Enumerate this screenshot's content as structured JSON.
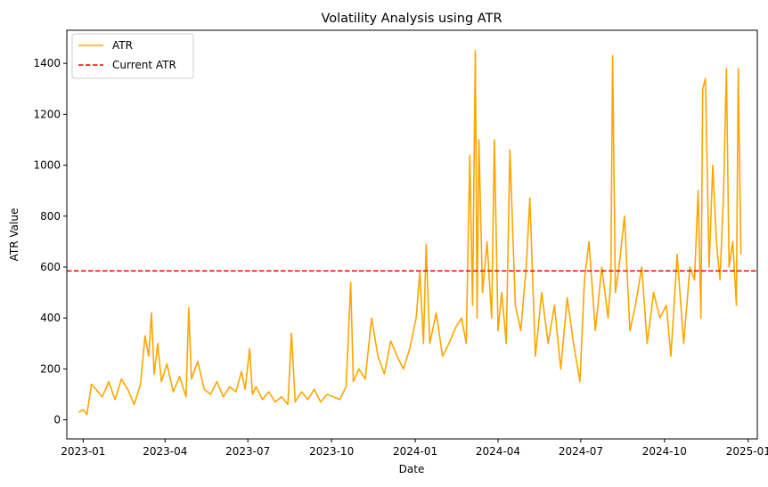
{
  "chart_data": {
    "type": "line",
    "title": "Volatility Analysis using ATR",
    "xlabel": "Date",
    "ylabel": "ATR Value",
    "x_ticks": [
      "2023-01",
      "2023-04",
      "2023-07",
      "2023-10",
      "2024-01",
      "2024-04",
      "2024-07",
      "2024-10",
      "2025-01"
    ],
    "y_ticks": [
      0,
      200,
      400,
      600,
      800,
      1000,
      1200,
      1400
    ],
    "xlim": [
      "2022-12-14",
      "2025-01-11"
    ],
    "ylim": [
      -75,
      1530
    ],
    "grid": false,
    "legend_position": "top-left",
    "colors": {
      "atr": "#ffa500",
      "current": "#ff0000"
    },
    "series": [
      {
        "name": "ATR",
        "style": "solid",
        "x": [
          "2022-12-27",
          "2023-01-01",
          "2023-01-05",
          "2023-01-10",
          "2023-01-15",
          "2023-01-22",
          "2023-01-29",
          "2023-02-05",
          "2023-02-12",
          "2023-02-19",
          "2023-02-26",
          "2023-03-05",
          "2023-03-10",
          "2023-03-14",
          "2023-03-17",
          "2023-03-20",
          "2023-03-24",
          "2023-03-28",
          "2023-04-03",
          "2023-04-10",
          "2023-04-17",
          "2023-04-24",
          "2023-04-27",
          "2023-04-30",
          "2023-05-07",
          "2023-05-14",
          "2023-05-21",
          "2023-05-28",
          "2023-06-04",
          "2023-06-11",
          "2023-06-18",
          "2023-06-24",
          "2023-06-28",
          "2023-07-03",
          "2023-07-06",
          "2023-07-10",
          "2023-07-17",
          "2023-07-24",
          "2023-07-31",
          "2023-08-07",
          "2023-08-14",
          "2023-08-18",
          "2023-08-22",
          "2023-08-29",
          "2023-09-05",
          "2023-09-12",
          "2023-09-19",
          "2023-09-26",
          "2023-10-03",
          "2023-10-10",
          "2023-10-17",
          "2023-10-22",
          "2023-10-25",
          "2023-10-31",
          "2023-11-07",
          "2023-11-14",
          "2023-11-21",
          "2023-11-28",
          "2023-12-05",
          "2023-12-12",
          "2023-12-19",
          "2023-12-26",
          "2024-01-02",
          "2024-01-06",
          "2024-01-10",
          "2024-01-13",
          "2024-01-17",
          "2024-01-24",
          "2024-01-31",
          "2024-02-07",
          "2024-02-14",
          "2024-02-21",
          "2024-02-26",
          "2024-03-01",
          "2024-03-04",
          "2024-03-07",
          "2024-03-09",
          "2024-03-11",
          "2024-03-15",
          "2024-03-20",
          "2024-03-25",
          "2024-03-28",
          "2024-04-01",
          "2024-04-05",
          "2024-04-10",
          "2024-04-14",
          "2024-04-20",
          "2024-04-26",
          "2024-05-02",
          "2024-05-06",
          "2024-05-12",
          "2024-05-19",
          "2024-05-26",
          "2024-06-02",
          "2024-06-09",
          "2024-06-16",
          "2024-06-23",
          "2024-06-30",
          "2024-07-05",
          "2024-07-10",
          "2024-07-17",
          "2024-07-24",
          "2024-07-31",
          "2024-08-03",
          "2024-08-05",
          "2024-08-08",
          "2024-08-12",
          "2024-08-18",
          "2024-08-24",
          "2024-08-30",
          "2024-09-06",
          "2024-09-12",
          "2024-09-19",
          "2024-09-26",
          "2024-10-03",
          "2024-10-08",
          "2024-10-15",
          "2024-10-22",
          "2024-10-29",
          "2024-11-03",
          "2024-11-07",
          "2024-11-10",
          "2024-11-12",
          "2024-11-15",
          "2024-11-19",
          "2024-11-23",
          "2024-11-27",
          "2024-12-01",
          "2024-12-05",
          "2024-12-08",
          "2024-12-11",
          "2024-12-15",
          "2024-12-19",
          "2024-12-21",
          "2024-12-24"
        ],
        "values": [
          30,
          40,
          20,
          140,
          120,
          90,
          150,
          80,
          160,
          120,
          60,
          140,
          330,
          250,
          420,
          180,
          300,
          150,
          220,
          110,
          170,
          90,
          440,
          160,
          230,
          120,
          100,
          150,
          90,
          130,
          110,
          190,
          120,
          280,
          100,
          130,
          80,
          110,
          70,
          90,
          60,
          340,
          70,
          110,
          80,
          120,
          70,
          100,
          90,
          80,
          130,
          540,
          150,
          200,
          160,
          400,
          250,
          180,
          310,
          250,
          200,
          280,
          400,
          580,
          300,
          690,
          300,
          420,
          250,
          300,
          360,
          400,
          300,
          1040,
          450,
          1450,
          400,
          1100,
          500,
          700,
          400,
          1100,
          350,
          500,
          300,
          1060,
          450,
          350,
          600,
          870,
          250,
          500,
          300,
          450,
          200,
          480,
          300,
          150,
          550,
          700,
          350,
          600,
          400,
          550,
          1430,
          500,
          600,
          800,
          350,
          450,
          600,
          300,
          500,
          400,
          450,
          250,
          650,
          300,
          600,
          550,
          900,
          400,
          1300,
          1340,
          600,
          1000,
          700,
          550,
          900,
          1380,
          600,
          700,
          450,
          1380,
          650
        ]
      },
      {
        "name": "Current ATR",
        "style": "dashed",
        "y_value": 585
      }
    ]
  }
}
